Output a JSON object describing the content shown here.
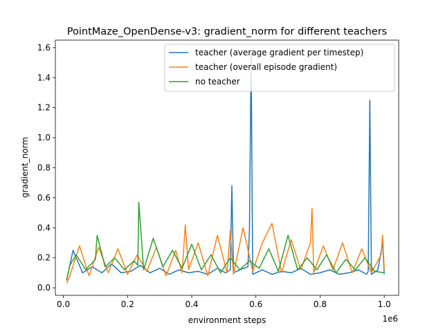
{
  "chart_data": {
    "type": "line",
    "title": "PointMaze_OpenDense-v3: gradient_norm for different teachers",
    "xlabel": "environment steps",
    "ylabel": "gradient_norm",
    "x_offset_label": "1e6",
    "xlim": [
      -0.025,
      1.045
    ],
    "ylim": [
      -0.05,
      1.65
    ],
    "x_ticks": [
      0.0,
      0.2,
      0.4,
      0.6,
      0.8,
      1.0
    ],
    "x_tick_labels": [
      "0.0",
      "0.2",
      "0.4",
      "0.6",
      "0.8",
      "1.0"
    ],
    "y_ticks": [
      0.0,
      0.2,
      0.4,
      0.6,
      0.8,
      1.0,
      1.2,
      1.4,
      1.6
    ],
    "y_tick_labels": [
      "0.0",
      "0.2",
      "0.4",
      "0.6",
      "0.8",
      "1.0",
      "1.2",
      "1.4",
      "1.6"
    ],
    "grid": false,
    "legend_position": "top-right",
    "series": [
      {
        "name": "teacher (average gradient per timestep)",
        "color": "#1f77b4",
        "x": [
          0.01,
          0.03,
          0.06,
          0.09,
          0.12,
          0.15,
          0.18,
          0.21,
          0.24,
          0.27,
          0.3,
          0.33,
          0.36,
          0.39,
          0.42,
          0.45,
          0.48,
          0.505,
          0.52,
          0.525,
          0.53,
          0.55,
          0.575,
          0.58,
          0.585,
          0.59,
          0.62,
          0.65,
          0.68,
          0.71,
          0.74,
          0.77,
          0.8,
          0.83,
          0.86,
          0.89,
          0.92,
          0.945,
          0.95,
          0.955,
          0.96,
          0.98,
          0.995,
          1.0
        ],
        "y": [
          0.05,
          0.25,
          0.1,
          0.14,
          0.1,
          0.16,
          0.1,
          0.11,
          0.15,
          0.1,
          0.13,
          0.09,
          0.12,
          0.1,
          0.11,
          0.09,
          0.13,
          0.1,
          0.12,
          0.68,
          0.1,
          0.12,
          0.14,
          0.38,
          1.56,
          0.09,
          0.12,
          0.09,
          0.11,
          0.1,
          0.13,
          0.09,
          0.1,
          0.12,
          0.09,
          0.1,
          0.12,
          0.09,
          0.11,
          1.25,
          0.09,
          0.12,
          0.3,
          0.09
        ]
      },
      {
        "name": "teacher (overall episode gradient)",
        "color": "#ff7f0e",
        "x": [
          0.01,
          0.02,
          0.05,
          0.08,
          0.11,
          0.14,
          0.17,
          0.2,
          0.23,
          0.26,
          0.29,
          0.32,
          0.35,
          0.37,
          0.38,
          0.39,
          0.42,
          0.45,
          0.48,
          0.51,
          0.52,
          0.53,
          0.56,
          0.59,
          0.62,
          0.65,
          0.68,
          0.71,
          0.74,
          0.77,
          0.775,
          0.78,
          0.81,
          0.84,
          0.87,
          0.9,
          0.93,
          0.96,
          0.99,
          0.995,
          1.0
        ],
        "y": [
          0.03,
          0.08,
          0.28,
          0.08,
          0.27,
          0.1,
          0.26,
          0.09,
          0.22,
          0.11,
          0.27,
          0.08,
          0.25,
          0.1,
          0.42,
          0.12,
          0.3,
          0.08,
          0.35,
          0.1,
          0.38,
          0.09,
          0.4,
          0.11,
          0.3,
          0.43,
          0.1,
          0.32,
          0.12,
          0.3,
          0.53,
          0.1,
          0.28,
          0.12,
          0.3,
          0.1,
          0.26,
          0.1,
          0.22,
          0.35,
          0.12
        ]
      },
      {
        "name": "no teacher",
        "color": "#2ca02c",
        "x": [
          0.01,
          0.02,
          0.04,
          0.07,
          0.1,
          0.105,
          0.13,
          0.16,
          0.19,
          0.22,
          0.232,
          0.235,
          0.25,
          0.28,
          0.31,
          0.34,
          0.37,
          0.4,
          0.43,
          0.46,
          0.49,
          0.52,
          0.55,
          0.58,
          0.61,
          0.64,
          0.67,
          0.7,
          0.73,
          0.76,
          0.79,
          0.82,
          0.85,
          0.88,
          0.91,
          0.94,
          0.97,
          1.0
        ],
        "y": [
          0.05,
          0.15,
          0.22,
          0.12,
          0.19,
          0.35,
          0.14,
          0.2,
          0.12,
          0.18,
          0.15,
          0.57,
          0.12,
          0.33,
          0.14,
          0.25,
          0.13,
          0.29,
          0.12,
          0.22,
          0.1,
          0.2,
          0.12,
          0.18,
          0.13,
          0.26,
          0.11,
          0.35,
          0.12,
          0.2,
          0.12,
          0.22,
          0.1,
          0.19,
          0.12,
          0.2,
          0.11,
          0.1
        ]
      }
    ]
  }
}
